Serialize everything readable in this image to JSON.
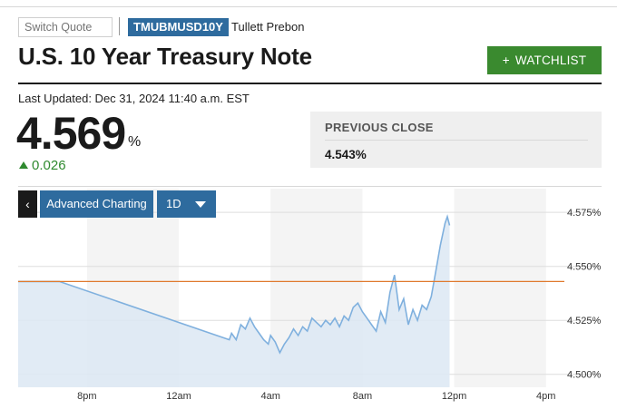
{
  "header": {
    "search_placeholder": "Switch Quote",
    "ticker": "TMUBMUSD10Y",
    "source": "Tullett Prebon",
    "title": "U.S. 10 Year Treasury Note",
    "watchlist_plus": "+",
    "watchlist_label": "WATCHLIST"
  },
  "quote": {
    "last_updated": "Last Updated: Dec 31, 2024 11:40 a.m. EST",
    "price": "4.569",
    "unit": "%",
    "change": "0.026",
    "previous_close_label": "PREVIOUS CLOSE",
    "previous_close_value": "4.543%"
  },
  "chart_controls": {
    "back_label": "‹",
    "advanced_label": "Advanced Charting",
    "range_label": "1D"
  },
  "colors": {
    "accent_blue": "#2e6b9e",
    "watchlist_green": "#3a8a2f",
    "positive_green": "#2f8a2f",
    "series_line": "#7fb0de",
    "series_fill": "#dce8f3",
    "previous_close_line": "#e07a2e"
  },
  "chart_data": {
    "type": "area",
    "ylim": [
      4.494,
      4.586
    ],
    "yticks": [
      "4.575%",
      "4.550%",
      "4.525%",
      "4.500%"
    ],
    "yticks_values": [
      4.575,
      4.55,
      4.525,
      4.5
    ],
    "xticks": [
      "8pm",
      "12am",
      "4am",
      "8am",
      "12pm",
      "4pm"
    ],
    "xticks_hours": [
      20,
      24,
      28,
      32,
      36,
      40
    ],
    "xlim_hours": [
      17,
      40.8
    ],
    "previous_close": 4.543,
    "series": [
      {
        "x": [
          17.0,
          18.8,
          26.2,
          26.3,
          26.5,
          26.7,
          26.9,
          27.1,
          27.3,
          27.5,
          27.7,
          27.9,
          28.0,
          28.2,
          28.4,
          28.6,
          28.8,
          29.0,
          29.2,
          29.4,
          29.6,
          29.8,
          30.0,
          30.2,
          30.4,
          30.6,
          30.8,
          31.0,
          31.2,
          31.4,
          31.6,
          31.8,
          32.0,
          32.2,
          32.4,
          32.6,
          32.8,
          33.0,
          33.2,
          33.4,
          33.6,
          33.8,
          34.0,
          34.2,
          34.4,
          34.6,
          34.8,
          35.0,
          35.2,
          35.4,
          35.6,
          35.7,
          35.8
        ],
        "y": [
          4.543,
          4.543,
          4.516,
          4.519,
          4.516,
          4.523,
          4.521,
          4.526,
          4.522,
          4.519,
          4.516,
          4.514,
          4.518,
          4.515,
          4.51,
          4.514,
          4.517,
          4.521,
          4.518,
          4.522,
          4.52,
          4.526,
          4.524,
          4.522,
          4.525,
          4.523,
          4.526,
          4.522,
          4.527,
          4.525,
          4.531,
          4.533,
          4.529,
          4.526,
          4.523,
          4.52,
          4.529,
          4.524,
          4.538,
          4.546,
          4.53,
          4.535,
          4.523,
          4.53,
          4.525,
          4.532,
          4.53,
          4.536,
          4.548,
          4.56,
          4.57,
          4.573,
          4.569
        ],
        "name": ""
      }
    ]
  }
}
